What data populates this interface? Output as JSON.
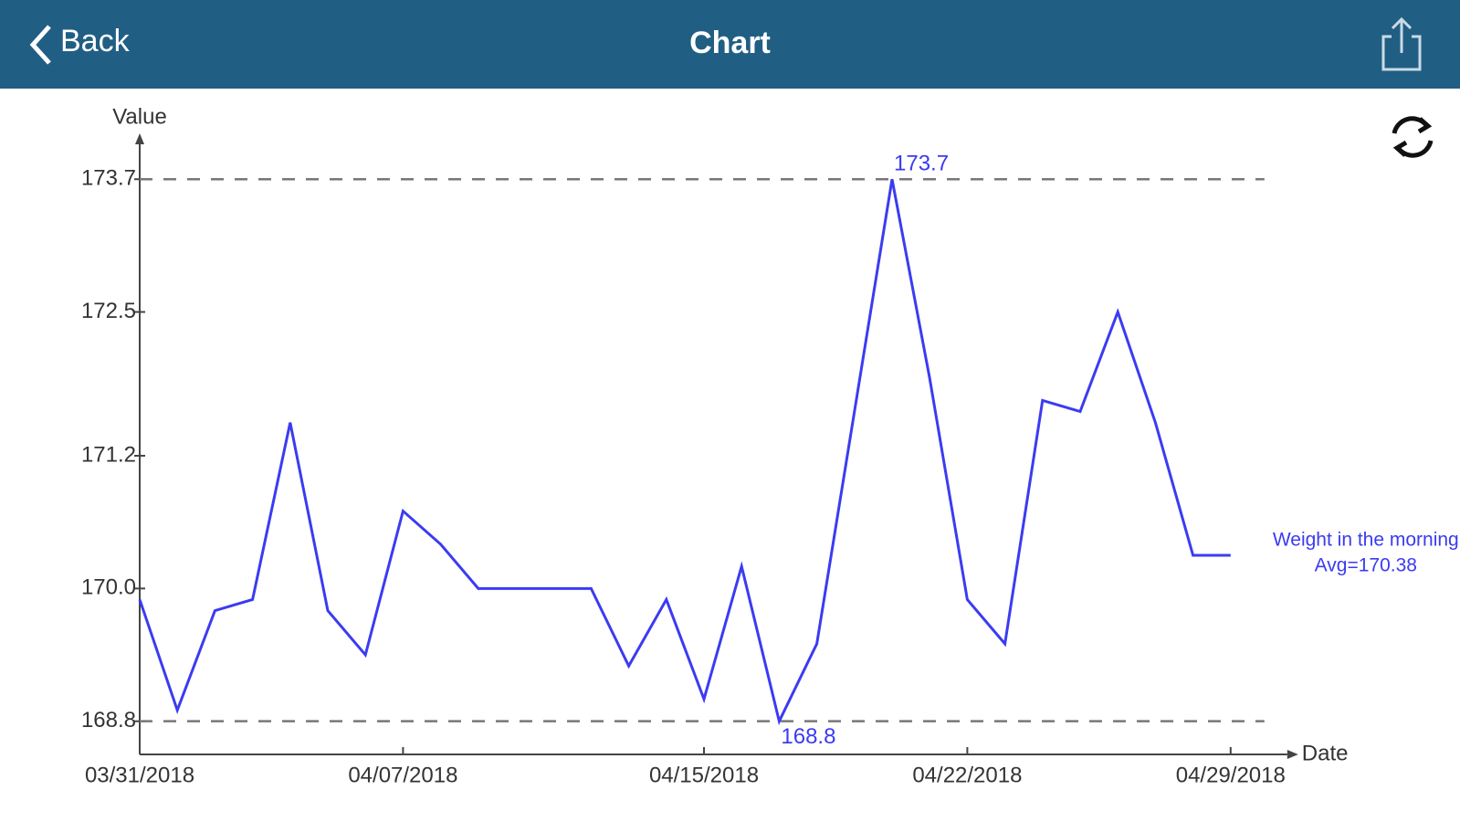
{
  "header": {
    "back": "Back",
    "title": "Chart"
  },
  "chart_data": {
    "type": "line",
    "y_label": "Value",
    "x_label": "Date",
    "x": [
      "03/31/2018",
      "04/01/2018",
      "04/02/2018",
      "04/03/2018",
      "04/04/2018",
      "04/05/2018",
      "04/06/2018",
      "04/07/2018",
      "04/08/2018",
      "04/09/2018",
      "04/10/2018",
      "04/11/2018",
      "04/12/2018",
      "04/13/2018",
      "04/14/2018",
      "04/15/2018",
      "04/16/2018",
      "04/17/2018",
      "04/18/2018",
      "04/19/2018",
      "04/20/2018",
      "04/21/2018",
      "04/22/2018",
      "04/23/2018",
      "04/24/2018",
      "04/25/2018",
      "04/26/2018",
      "04/27/2018",
      "04/28/2018",
      "04/29/2018"
    ],
    "series": [
      {
        "name": "Weight in the morning",
        "color": "#3b3bf2",
        "values": [
          169.9,
          168.9,
          169.8,
          169.9,
          171.5,
          169.8,
          169.4,
          170.7,
          170.4,
          170.0,
          170.0,
          170.0,
          170.0,
          169.3,
          169.9,
          169.0,
          170.2,
          168.8,
          169.5,
          171.6,
          173.7,
          171.9,
          169.9,
          169.5,
          171.7,
          171.6,
          172.5,
          171.5,
          170.3,
          170.3
        ]
      }
    ],
    "annotation": "Avg=170.38",
    "ylim": [
      168.5,
      173.9
    ],
    "yticks": [
      {
        "value": 168.8,
        "label": "168.8"
      },
      {
        "value": 170,
        "label": "170.0"
      },
      171.2,
      172.5,
      173.7
    ],
    "xticks": [
      "03/31/2018",
      "04/07/2018",
      "04/15/2018",
      "04/22/2018",
      "04/29/2018"
    ]
  }
}
